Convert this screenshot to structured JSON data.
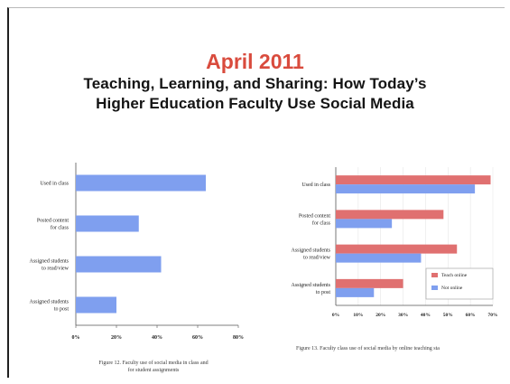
{
  "header": {
    "date": "April 2011",
    "title_line1": "Teaching, Learning, and Sharing: How Today’s",
    "title_line2": "Higher Education Faculty Use Social Media"
  },
  "figure12": {
    "caption_line1": "Figure 12. Faculty use of social media in class and",
    "caption_line2": "for student assignments"
  },
  "figure13": {
    "caption": "Figure 13. Faculty class use of social media by online teaching sta"
  },
  "colors": {
    "blue": "#7f9fef",
    "red": "#e07070",
    "axis": "#555555"
  },
  "chart_data": [
    {
      "type": "bar",
      "orientation": "horizontal",
      "categories": [
        "Used in class",
        "Posted content for class",
        "Assigned students to read/view",
        "Assigned students to post"
      ],
      "values": [
        64,
        31,
        42,
        20
      ],
      "xlim": [
        0,
        80
      ],
      "xticks": [
        "0%",
        "20%",
        "40%",
        "60%",
        "80%"
      ]
    },
    {
      "type": "bar",
      "orientation": "horizontal",
      "categories": [
        "Used in class",
        "Posted content for class",
        "Assigned students to read/view",
        "Assigned students to post"
      ],
      "series": [
        {
          "name": "Teach online",
          "values": [
            69,
            48,
            54,
            30
          ]
        },
        {
          "name": "Not online",
          "values": [
            62,
            25,
            38,
            17
          ]
        }
      ],
      "xlim": [
        0,
        70
      ],
      "xticks": [
        "0%",
        "10%",
        "20%",
        "30%",
        "40%",
        "50%",
        "60%",
        "70%"
      ],
      "legend": "bottom-right"
    }
  ]
}
